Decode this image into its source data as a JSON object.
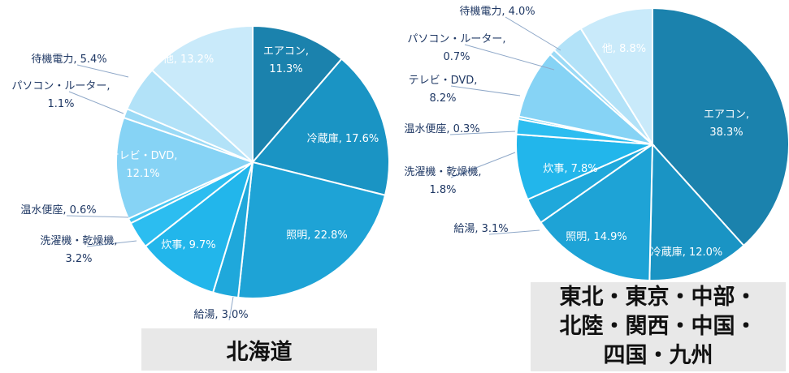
{
  "chart_data": [
    {
      "type": "pie",
      "title": "北海道",
      "start_angle": "12 o'clock, clockwise",
      "colors": {
        "inside_label": "#ffffff",
        "outside_label": "#1f3864",
        "slice_border": "#ffffff"
      },
      "slices": [
        {
          "name": "エアコン",
          "value": 11.3,
          "label_lines": [
            "エアコン,",
            "11.3%"
          ],
          "color": "#1b82ad",
          "label_inside": true
        },
        {
          "name": "冷蔵庫",
          "value": 17.6,
          "label_lines": [
            "冷蔵庫, 17.6%"
          ],
          "color": "#1a94c4",
          "label_inside": true
        },
        {
          "name": "照明",
          "value": 22.8,
          "label_lines": [
            "照明, 22.8%"
          ],
          "color": "#1ea3d6",
          "label_inside": true
        },
        {
          "name": "給湯",
          "value": 3.0,
          "label_lines": [
            "給湯, 3.0%"
          ],
          "color": "#1fa8db",
          "label_inside": false
        },
        {
          "name": "炊事",
          "value": 9.7,
          "label_lines": [
            "炊事, 9.7%"
          ],
          "color": "#22b6eb",
          "label_inside": true
        },
        {
          "name": "洗濯機・乾燥機",
          "value": 3.2,
          "label_lines": [
            "洗濯機・乾燥機,",
            "3.2%"
          ],
          "color": "#2cbdf0",
          "label_inside": false
        },
        {
          "name": "温水便座",
          "value": 0.6,
          "label_lines": [
            "温水便座, 0.6%"
          ],
          "color": "#45c5f1",
          "label_inside": false
        },
        {
          "name": "テレビ・DVD",
          "value": 12.1,
          "label_lines": [
            "テレビ・DVD,",
            "12.1%"
          ],
          "color": "#86d3f5",
          "label_inside": true
        },
        {
          "name": "パソコン・ルーター",
          "value": 1.1,
          "label_lines": [
            "パソコン・ルーター,",
            "1.1%"
          ],
          "color": "#9bdaf6",
          "label_inside": false
        },
        {
          "name": "待機電力",
          "value": 5.4,
          "label_lines": [
            "待機電力, 5.4%"
          ],
          "color": "#b2e2f8",
          "label_inside": false
        },
        {
          "name": "他",
          "value": 13.2,
          "label_lines": [
            "他, 13.2%"
          ],
          "color": "#c9eafa",
          "label_inside": true
        }
      ]
    },
    {
      "type": "pie",
      "title": "東北・東京・中部・\n北陸・関西・中国・\n四国・九州",
      "start_angle": "12 o'clock, clockwise",
      "colors": {
        "inside_label": "#ffffff",
        "outside_label": "#1f3864",
        "slice_border": "#ffffff"
      },
      "slices": [
        {
          "name": "エアコン",
          "value": 38.3,
          "label_lines": [
            "エアコン,",
            "38.3%"
          ],
          "color": "#1b82ad",
          "label_inside": true
        },
        {
          "name": "冷蔵庫",
          "value": 12.0,
          "label_lines": [
            "冷蔵庫, 12.0%"
          ],
          "color": "#1a94c4",
          "label_inside": true
        },
        {
          "name": "照明",
          "value": 14.9,
          "label_lines": [
            "照明, 14.9%"
          ],
          "color": "#1ea3d6",
          "label_inside": true
        },
        {
          "name": "給湯",
          "value": 3.1,
          "label_lines": [
            "給湯, 3.1%"
          ],
          "color": "#1fa8db",
          "label_inside": false
        },
        {
          "name": "炊事",
          "value": 7.8,
          "label_lines": [
            "炊事, 7.8%"
          ],
          "color": "#22b6eb",
          "label_inside": true
        },
        {
          "name": "洗濯機・乾燥機",
          "value": 1.8,
          "label_lines": [
            "洗濯機・乾燥機,",
            "1.8%"
          ],
          "color": "#2cbdf0",
          "label_inside": false
        },
        {
          "name": "温水便座",
          "value": 0.3,
          "label_lines": [
            "温水便座, 0.3%"
          ],
          "color": "#45c5f1",
          "label_inside": false
        },
        {
          "name": "テレビ・DVD",
          "value": 8.2,
          "label_lines": [
            "テレビ・DVD,",
            "8.2%"
          ],
          "color": "#86d3f5",
          "label_inside": false
        },
        {
          "name": "パソコン・ルーター",
          "value": 0.7,
          "label_lines": [
            "パソコン・ルーター,",
            "0.7%"
          ],
          "color": "#9bdaf6",
          "label_inside": false
        },
        {
          "name": "待機電力",
          "value": 4.0,
          "label_lines": [
            "待機電力, 4.0%"
          ],
          "color": "#b2e2f8",
          "label_inside": false
        },
        {
          "name": "他",
          "value": 8.8,
          "label_lines": [
            "他, 8.8%"
          ],
          "color": "#c9eafa",
          "label_inside": true
        }
      ]
    }
  ]
}
